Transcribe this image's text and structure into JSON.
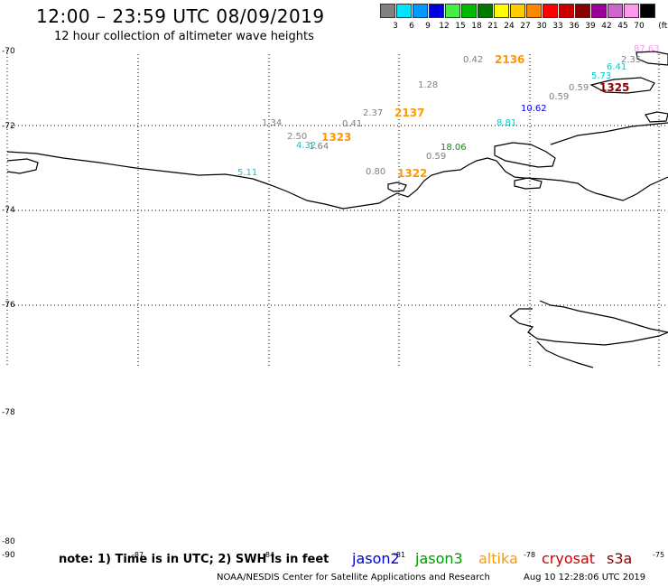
{
  "header": {
    "title": "12:00 – 23:59 UTC 08/09/2019",
    "subtitle": "12 hour collection of altimeter wave heights"
  },
  "legend": {
    "unit": "(ft)",
    "bins": [
      {
        "label": "3",
        "color": "#808080"
      },
      {
        "label": "6",
        "color": "#00e5ff"
      },
      {
        "label": "9",
        "color": "#0099ff"
      },
      {
        "label": "12",
        "color": "#0000dd"
      },
      {
        "label": "15",
        "color": "#44ee44"
      },
      {
        "label": "18",
        "color": "#00bb00"
      },
      {
        "label": "21",
        "color": "#007700"
      },
      {
        "label": "24",
        "color": "#ffff00"
      },
      {
        "label": "27",
        "color": "#ffcc00"
      },
      {
        "label": "30",
        "color": "#ff8800"
      },
      {
        "label": "33",
        "color": "#ff0000"
      },
      {
        "label": "36",
        "color": "#cc0000"
      },
      {
        "label": "39",
        "color": "#880000"
      },
      {
        "label": "42",
        "color": "#990099"
      },
      {
        "label": "45",
        "color": "#cc66cc"
      },
      {
        "label": "70",
        "color": "#ff99ee"
      },
      {
        "label": "",
        "color": "#000000"
      }
    ]
  },
  "axes": {
    "lat_labels": [
      "-70",
      "-72",
      "-74",
      "-76",
      "-78",
      "-80",
      "-90"
    ],
    "lon_labels": [
      "-87",
      "-84",
      "-81",
      "-78",
      "-75"
    ]
  },
  "observations": [
    {
      "text": "0.42",
      "color": "#808080",
      "big": false
    },
    {
      "text": "2136",
      "color": "#ff9900",
      "big": true
    },
    {
      "text": "87.63",
      "color": "#ff99ee",
      "big": false
    },
    {
      "text": "2.35",
      "color": "#808080",
      "big": false
    },
    {
      "text": "6.41",
      "color": "#00cccc",
      "big": false
    },
    {
      "text": "5.73",
      "color": "#00cccc",
      "big": false
    },
    {
      "text": "1.28",
      "color": "#808080",
      "big": false
    },
    {
      "text": "0.59",
      "color": "#808080",
      "big": false
    },
    {
      "text": "1325",
      "color": "#880000",
      "big": true
    },
    {
      "text": "0.59",
      "color": "#808080",
      "big": false
    },
    {
      "text": "10.62",
      "color": "#0000dd",
      "big": false
    },
    {
      "text": "2.37",
      "color": "#808080",
      "big": false
    },
    {
      "text": "2137",
      "color": "#ff9900",
      "big": true
    },
    {
      "text": "8.81",
      "color": "#00cccc",
      "big": false
    },
    {
      "text": "1.34",
      "color": "#808080",
      "big": false
    },
    {
      "text": "0.41",
      "color": "#808080",
      "big": false
    },
    {
      "text": "2.50",
      "color": "#808080",
      "big": false
    },
    {
      "text": "1323",
      "color": "#ff9900",
      "big": true
    },
    {
      "text": "4.32",
      "color": "#00cccc",
      "big": false
    },
    {
      "text": "1.64",
      "color": "#808080",
      "big": false
    },
    {
      "text": "18.06",
      "color": "#009900",
      "big": false
    },
    {
      "text": "0.59",
      "color": "#808080",
      "big": false
    },
    {
      "text": "5.11",
      "color": "#00cccc",
      "big": false
    },
    {
      "text": "0.80",
      "color": "#808080",
      "big": false
    },
    {
      "text": "1322",
      "color": "#ff9900",
      "big": true
    }
  ],
  "footer": {
    "note": "note: 1) Time is in UTC; 2) SWH is in feet",
    "satellites": [
      {
        "name": "jason2",
        "color": "#0000cc"
      },
      {
        "name": "jason3",
        "color": "#009900"
      },
      {
        "name": "altika",
        "color": "#ff9900"
      },
      {
        "name": "cryosat",
        "color": "#cc0000"
      },
      {
        "name": "s3a",
        "color": "#880000"
      }
    ],
    "credit": "NOAA/NESDIS Center for Satellite Applications and Research",
    "timestamp": "Aug 10 12:28:06 UTC 2019"
  }
}
